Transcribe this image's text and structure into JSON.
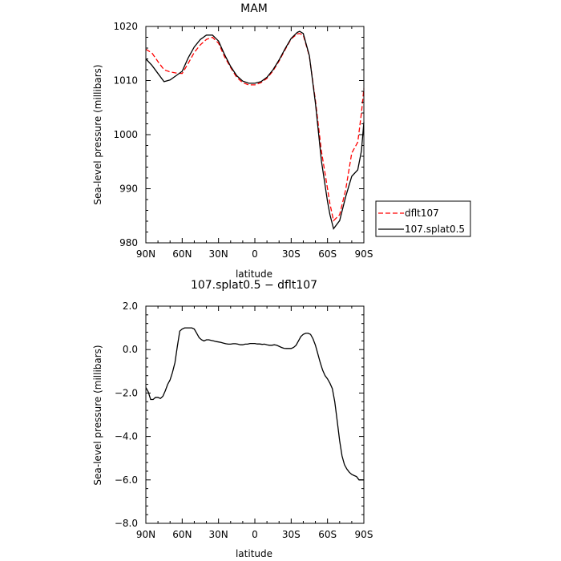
{
  "chart_data": [
    {
      "type": "line",
      "title": "MAM",
      "xlabel": "latitude",
      "ylabel": "Sea-level pressure (millibars)",
      "xlim": [
        90,
        -90
      ],
      "ylim": [
        980,
        1020
      ],
      "x_ticks": [
        90,
        60,
        30,
        0,
        -30,
        -60,
        -90
      ],
      "x_tick_labels": [
        "90N",
        "60N",
        "30N",
        "0",
        "30S",
        "60S",
        "90S"
      ],
      "y_ticks": [
        980,
        990,
        1000,
        1010,
        1020
      ],
      "y_tick_labels": [
        "980",
        "990",
        "1000",
        "1010",
        "1020"
      ],
      "legend_position": "right",
      "series": [
        {
          "name": "dflt107",
          "color": "#ff0000",
          "dash": "dashed",
          "x": [
            90,
            85,
            80,
            75,
            70,
            65,
            60,
            55,
            50,
            45,
            40,
            35,
            30,
            25,
            20,
            15,
            10,
            5,
            0,
            -5,
            -10,
            -15,
            -20,
            -25,
            -30,
            -35,
            -37,
            -40,
            -45,
            -50,
            -55,
            -60,
            -62,
            -65,
            -70,
            -75,
            -80,
            -85,
            -88,
            -90
          ],
          "y": [
            1015.8,
            1015.1,
            1013.5,
            1012.0,
            1011.6,
            1011.4,
            1011.3,
            1013.2,
            1015.2,
            1016.6,
            1017.6,
            1018.0,
            1016.9,
            1014.4,
            1012.4,
            1010.6,
            1009.6,
            1009.2,
            1009.2,
            1009.6,
            1010.4,
            1011.8,
            1013.6,
            1015.7,
            1017.7,
            1018.6,
            1018.7,
            1018.4,
            1014.5,
            1006.3,
            996.9,
            990.0,
            987.2,
            984.1,
            985.2,
            989.8,
            996.6,
            998.6,
            1004.0,
            1008.5
          ]
        },
        {
          "name": "107.splat0.5",
          "color": "#000000",
          "dash": "solid",
          "x": [
            90,
            85,
            80,
            75,
            70,
            65,
            60,
            55,
            50,
            45,
            40,
            35,
            30,
            25,
            20,
            15,
            10,
            5,
            0,
            -5,
            -10,
            -15,
            -20,
            -25,
            -30,
            -35,
            -37,
            -40,
            -45,
            -50,
            -55,
            -60,
            -62,
            -65,
            -70,
            -75,
            -80,
            -85,
            -88,
            -90
          ],
          "y": [
            1014.0,
            1012.8,
            1011.3,
            1009.8,
            1010.1,
            1010.9,
            1011.7,
            1014.2,
            1016.2,
            1017.6,
            1018.4,
            1018.4,
            1017.3,
            1014.8,
            1012.6,
            1010.9,
            1009.9,
            1009.5,
            1009.5,
            1009.8,
            1010.6,
            1012.0,
            1013.8,
            1015.9,
            1017.8,
            1018.9,
            1019.1,
            1018.7,
            1014.6,
            1005.8,
            995.1,
            987.6,
            985.2,
            982.6,
            984.1,
            988.5,
            992.3,
            993.5,
            997.0,
            1002.3
          ]
        }
      ]
    },
    {
      "type": "line",
      "title": "107.splat0.5 − dflt107",
      "xlabel": "latitude",
      "ylabel": "Sea-level pressure (millibars)",
      "xlim": [
        90,
        -90
      ],
      "ylim": [
        -8,
        2
      ],
      "x_ticks": [
        90,
        60,
        30,
        0,
        -30,
        -60,
        -90
      ],
      "x_tick_labels": [
        "90N",
        "60N",
        "30N",
        "0",
        "30S",
        "60S",
        "90S"
      ],
      "y_ticks": [
        -8,
        -6,
        -4,
        -2,
        0,
        2
      ],
      "y_tick_labels": [
        "−8.0",
        "−6.0",
        "−4.0",
        "−2.0",
        "0.0",
        "2.0"
      ],
      "series": [
        {
          "name": "",
          "color": "#000000",
          "dash": "solid",
          "x": [
            90,
            88,
            86,
            84,
            82,
            80,
            78,
            76,
            74,
            72,
            70,
            68,
            66,
            64,
            62,
            60,
            58,
            56,
            54,
            52,
            50,
            48,
            46,
            44,
            42,
            40,
            38,
            36,
            34,
            32,
            30,
            28,
            26,
            24,
            22,
            20,
            18,
            16,
            14,
            12,
            10,
            8,
            6,
            4,
            2,
            0,
            -2,
            -4,
            -6,
            -8,
            -10,
            -12,
            -14,
            -16,
            -18,
            -20,
            -22,
            -24,
            -26,
            -28,
            -30,
            -32,
            -34,
            -36,
            -38,
            -40,
            -42,
            -44,
            -46,
            -48,
            -50,
            -52,
            -54,
            -56,
            -58,
            -60,
            -62,
            -64,
            -66,
            -68,
            -70,
            -72,
            -74,
            -76,
            -78,
            -80,
            -82,
            -84,
            -86,
            -88,
            -90
          ],
          "y": [
            -1.75,
            -1.95,
            -2.3,
            -2.3,
            -2.2,
            -2.2,
            -2.25,
            -2.15,
            -1.9,
            -1.6,
            -1.4,
            -1.05,
            -0.6,
            0.15,
            0.85,
            0.95,
            1.0,
            1.0,
            1.0,
            1.0,
            0.95,
            0.75,
            0.55,
            0.45,
            0.4,
            0.45,
            0.45,
            0.42,
            0.4,
            0.37,
            0.35,
            0.33,
            0.3,
            0.27,
            0.25,
            0.25,
            0.27,
            0.27,
            0.25,
            0.22,
            0.22,
            0.25,
            0.25,
            0.28,
            0.28,
            0.28,
            0.26,
            0.26,
            0.24,
            0.25,
            0.22,
            0.2,
            0.2,
            0.22,
            0.2,
            0.15,
            0.1,
            0.06,
            0.05,
            0.05,
            0.05,
            0.1,
            0.2,
            0.4,
            0.6,
            0.7,
            0.75,
            0.75,
            0.7,
            0.5,
            0.2,
            -0.2,
            -0.6,
            -0.95,
            -1.2,
            -1.35,
            -1.55,
            -1.8,
            -2.4,
            -3.3,
            -4.2,
            -4.9,
            -5.3,
            -5.5,
            -5.65,
            -5.75,
            -5.8,
            -5.85,
            -6.0,
            -6.0,
            -6.0
          ]
        }
      ]
    }
  ]
}
